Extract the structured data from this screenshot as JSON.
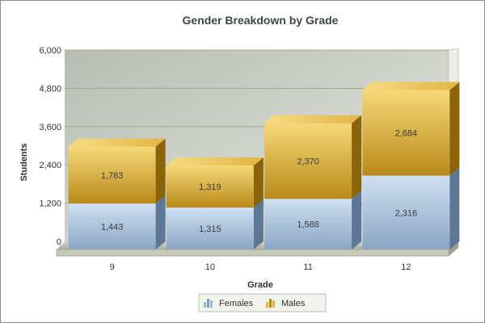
{
  "chart_data": {
    "type": "bar",
    "stacked": true,
    "title": "Gender Breakdown by Grade",
    "xlabel": "Grade",
    "ylabel": "Students",
    "categories": [
      "9",
      "10",
      "11",
      "12"
    ],
    "series": [
      {
        "name": "Females",
        "values": [
          1443,
          1315,
          1588,
          2316
        ],
        "labels": [
          "1,443",
          "1,315",
          "1,588",
          "2,316"
        ],
        "color": "#b4cbe2"
      },
      {
        "name": "Males",
        "values": [
          1783,
          1319,
          2370,
          2684
        ],
        "labels": [
          "1,783",
          "1,319",
          "2,370",
          "2,684"
        ],
        "color": "#f0c040"
      }
    ],
    "ylim": [
      0,
      6000
    ],
    "yticks": [
      0,
      1200,
      2400,
      3600,
      4800,
      6000
    ],
    "ytick_labels": [
      "0",
      "1,200",
      "2,400",
      "3,600",
      "4,800",
      "6,000"
    ],
    "grid": true,
    "legend_position": "bottom-center",
    "style": "3d"
  },
  "legend": {
    "icon_names": [
      "bar-chart-icon",
      "bar-chart-icon"
    ]
  }
}
